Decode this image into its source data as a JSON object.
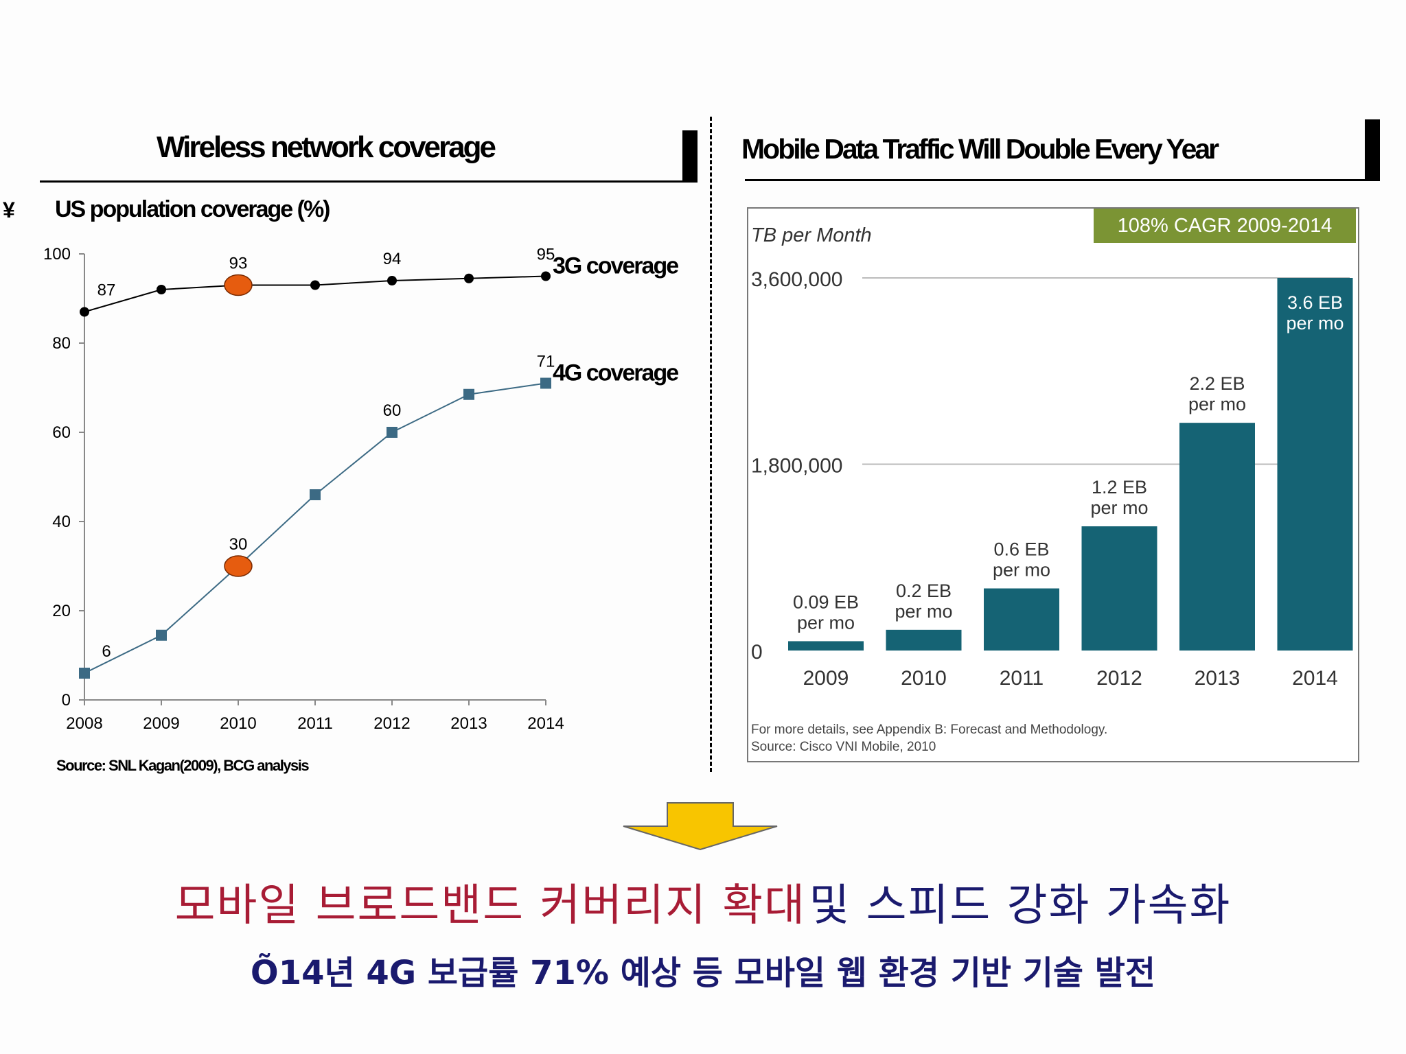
{
  "left_panel": {
    "title": "Wireless network coverage",
    "yen_glyph": "¥",
    "subtitle": "US population coverage (%)",
    "source": "Source: SNL Kagan(2009), BCG analysis"
  },
  "right_panel": {
    "title": "Mobile Data Traffic Will Double Every Year",
    "source_line1": "For more details, see Appendix B: Forecast and Methodology.",
    "source_line2": "Source: Cisco VNI Mobile, 2010"
  },
  "colors": {
    "line_3g": "#000000",
    "line_4g": "#3c6a84",
    "highlight": "#e65c0f",
    "bar": "#156374",
    "cagr_badge": "#7b9434",
    "arrow": "#f8c500",
    "headline_red": "#a81c35",
    "headline_navy": "#1a1a6e"
  },
  "chart_data": [
    {
      "type": "line",
      "title": "Wireless network coverage",
      "ylabel": "US population coverage (%)",
      "xlabel": "",
      "x": [
        "2008",
        "2009",
        "2010",
        "2011",
        "2012",
        "2013",
        "2014"
      ],
      "ylim": [
        0,
        100
      ],
      "yticks": [
        0,
        20,
        40,
        60,
        80,
        100
      ],
      "grid": false,
      "series": [
        {
          "name": "3G coverage",
          "values": [
            87,
            92,
            93,
            93,
            94,
            94.5,
            95
          ],
          "labels": [
            "87",
            "",
            "93",
            "",
            "94",
            "",
            "95"
          ],
          "marker": "circle"
        },
        {
          "name": "4G coverage",
          "values": [
            6,
            14.5,
            30,
            46,
            60,
            68.5,
            71
          ],
          "labels": [
            "6",
            "",
            "30",
            "",
            "60",
            "",
            "71"
          ],
          "marker": "square"
        }
      ],
      "highlights": [
        {
          "series": "3G coverage",
          "x": "2010"
        },
        {
          "series": "4G coverage",
          "x": "2010"
        }
      ]
    },
    {
      "type": "bar",
      "title": "Mobile Data Traffic Will Double Every Year",
      "ylabel": "TB per Month",
      "xlabel": "",
      "categories": [
        "2009",
        "2010",
        "2011",
        "2012",
        "2013",
        "2014"
      ],
      "values": [
        90000,
        200000,
        600000,
        1200000,
        2200000,
        3600000
      ],
      "ylim": [
        0,
        3600000
      ],
      "yticks": [
        0,
        1800000,
        3600000
      ],
      "ytick_labels": [
        "0",
        "1,800,000",
        "3,600,000"
      ],
      "grid": true,
      "data_labels": [
        [
          "0.09 EB",
          "per mo"
        ],
        [
          "0.2 EB",
          "per mo"
        ],
        [
          "0.6 EB",
          "per mo"
        ],
        [
          "1.2 EB",
          "per mo"
        ],
        [
          "2.2 EB",
          "per mo"
        ],
        [
          "3.6 EB",
          "per mo"
        ]
      ],
      "annotation": "108% CAGR 2009-2014"
    }
  ],
  "conclusion": {
    "headline_red": "모바일 브로드밴드 커버리지 확대",
    "headline_navy": "및 스피드 강화 가속화",
    "subline": "Õ14년 4G 보급률 71% 예상 등 모바일 웹 환경 기반 기술 발전"
  }
}
